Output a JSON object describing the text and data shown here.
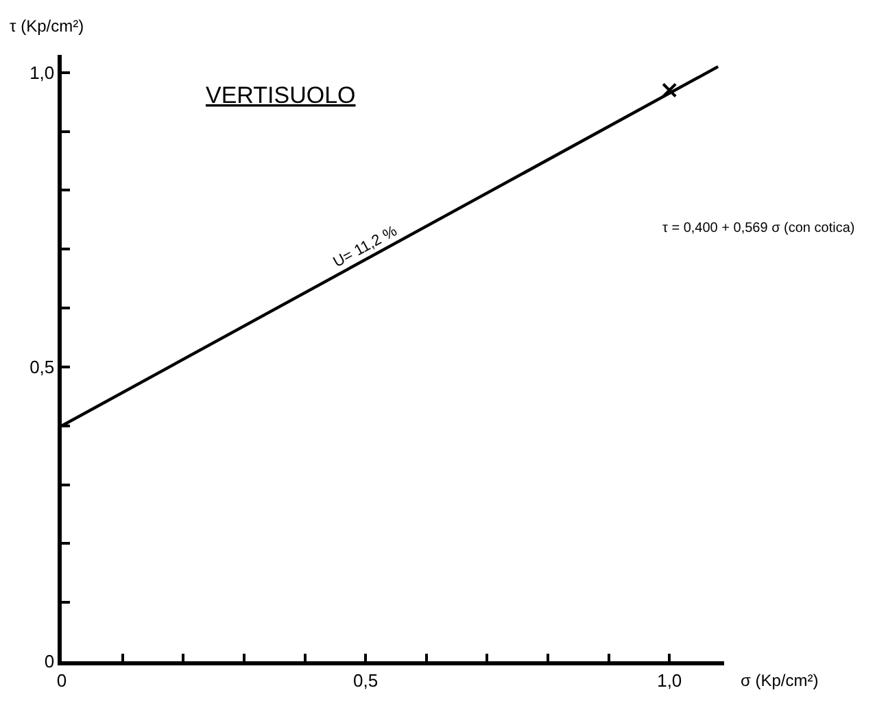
{
  "chart_data": {
    "type": "line",
    "title": "VERTISUOLO",
    "xlabel": "σ (Kp/cm²)",
    "ylabel": "τ (Kp/cm²)",
    "series": [
      {
        "color": "#000000",
        "x": [
          0,
          1.08
        ],
        "values": [
          0.4,
          1.01
        ]
      },
      {
        "type": "scatter",
        "color": "#000000",
        "marker": "cross",
        "x": [
          1.0
        ],
        "values": [
          0.97
        ]
      }
    ],
    "xlim": [
      0,
      1.09
    ],
    "ylim": [
      0,
      1.03
    ],
    "xticks": [
      0,
      {
        "value": 0.1,
        "label": null
      },
      {
        "value": 0.2,
        "label": null
      },
      {
        "value": 0.3,
        "label": null
      },
      {
        "value": 0.4,
        "label": null
      },
      {
        "value": 0.5,
        "label": "0,5"
      },
      {
        "value": 0.6,
        "label": null
      },
      {
        "value": 0.7,
        "label": null
      },
      {
        "value": 0.8,
        "label": null
      },
      {
        "value": 0.9,
        "label": null
      },
      {
        "value": 1.0,
        "label": "1,0"
      }
    ],
    "yticks": [
      0,
      {
        "value": 0.1,
        "label": null
      },
      {
        "value": 0.2,
        "label": null
      },
      {
        "value": 0.3,
        "label": null
      },
      {
        "value": 0.4,
        "label": null
      },
      {
        "value": 0.5,
        "label": "0,5"
      },
      {
        "value": 0.6,
        "label": null
      },
      {
        "value": 0.7,
        "label": null
      },
      {
        "value": 0.8,
        "label": null
      },
      {
        "value": 0.9,
        "label": null
      },
      {
        "value": 1.0,
        "label": "1,0"
      }
    ],
    "annotations": [
      {
        "text": "U= 11,2 %",
        "x": 0.5,
        "y": 0.685
      },
      "τ = 0,400 + 0,569 σ (con cotica)"
    ],
    "grid": false
  }
}
